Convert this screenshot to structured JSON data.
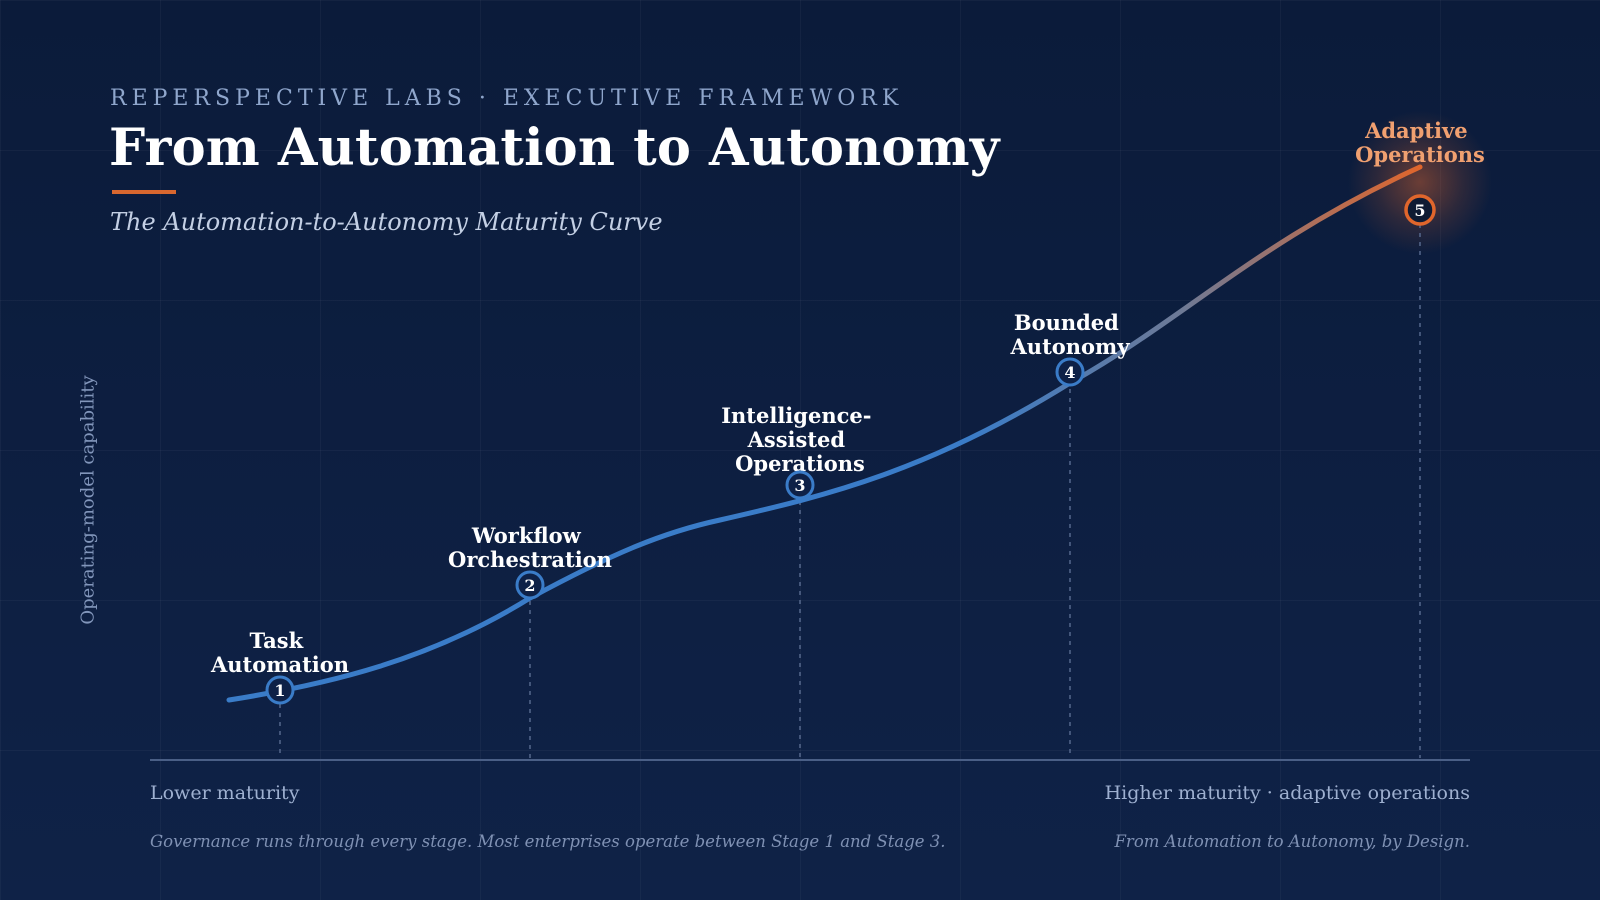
{
  "header": {
    "eyebrow": "REPERSPECTIVE LABS · EXECUTIVE FRAMEWORK",
    "title": "From Automation to Autonomy",
    "subtitle": "The Automation-to-Autonomy Maturity Curve"
  },
  "axis": {
    "y_label": "Operating-model capability",
    "x_left": "Lower maturity",
    "x_right": "Higher maturity · adaptive operations"
  },
  "footer": {
    "left": "Governance runs through every stage. Most enterprises operate between Stage 1 and Stage 3.",
    "right": "From Automation to Autonomy, by Design."
  },
  "stages": [
    {
      "number": "1",
      "lines": [
        "Task",
        "Automation"
      ]
    },
    {
      "number": "2",
      "lines": [
        "Workflow",
        "Orchestration"
      ]
    },
    {
      "number": "3",
      "lines": [
        "Intelligence-",
        "Assisted",
        "Operations"
      ]
    },
    {
      "number": "4",
      "lines": [
        "Bounded",
        "Autonomy"
      ]
    },
    {
      "number": "5",
      "lines": [
        "Adaptive",
        "Operations"
      ]
    }
  ],
  "colors": {
    "background": "#0b1b3a",
    "curve_blue": "#3a7cc8",
    "curve_orange": "#e0662c",
    "accent": "#d9672f",
    "final_label": "#f0a070"
  }
}
